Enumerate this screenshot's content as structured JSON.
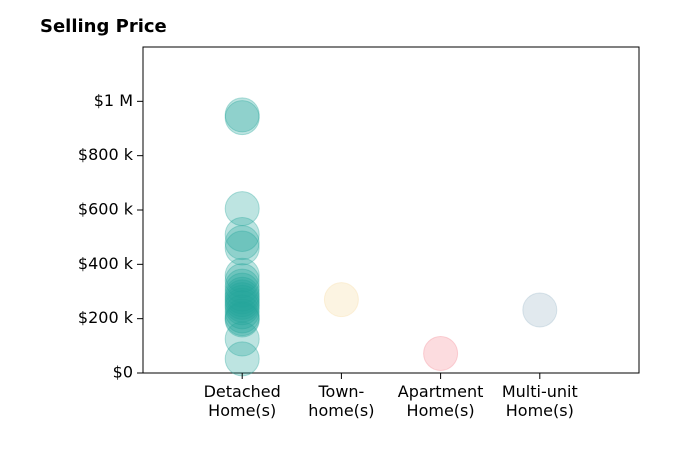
{
  "chart_data": {
    "type": "scatter",
    "title": "Selling Price",
    "xlabel": "",
    "ylabel": "",
    "categories": [
      [
        "Detached",
        "Home(s)"
      ],
      [
        "Town-",
        "home(s)"
      ],
      [
        "Apartment",
        "Home(s)"
      ],
      [
        "Multi-unit",
        "Home(s)"
      ]
    ],
    "ylim": [
      0,
      1200000
    ],
    "yticks": [
      0,
      200000,
      400000,
      600000,
      800000,
      1000000
    ],
    "ytick_labels": [
      "$0",
      "$200 k",
      "$400 k",
      "$600 k",
      "$800 k",
      "$1 M"
    ],
    "grid": false,
    "series": [
      {
        "category_index": 0,
        "color": "#26a69a",
        "values": [
          950000,
          940000,
          605000,
          510000,
          480000,
          460000,
          360000,
          340000,
          320000,
          305000,
          290000,
          280000,
          270000,
          260000,
          250000,
          240000,
          225000,
          210000,
          200000,
          195000,
          125000,
          52000
        ]
      },
      {
        "category_index": 1,
        "color": "#f5d9a0",
        "values": [
          270000
        ]
      },
      {
        "category_index": 2,
        "color": "#f48a94",
        "values": [
          72000
        ]
      },
      {
        "category_index": 3,
        "color": "#9ab6c8",
        "values": [
          232000
        ]
      }
    ]
  }
}
